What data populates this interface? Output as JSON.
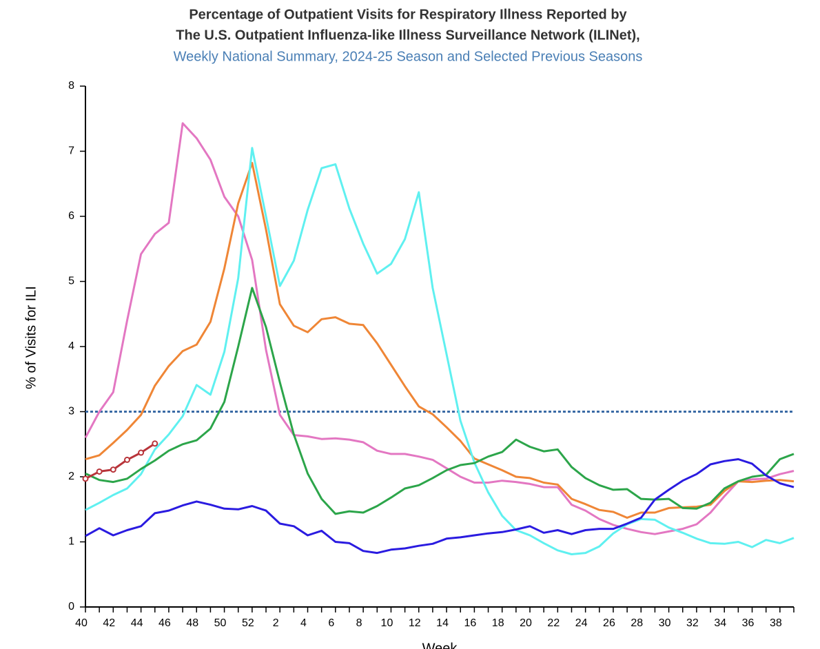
{
  "chart_data": {
    "type": "line",
    "title": "Percentage of Outpatient Visits for Respiratory Illness Reported by",
    "title_line2": "The U.S. Outpatient Influenza-like Illness Surveillance Network (ILINet),",
    "subtitle": "Weekly National Summary, 2024-25 Season and Selected Previous Seasons",
    "xlabel": "Week",
    "ylabel": "% of Visits for ILI",
    "categories": [
      "40",
      null,
      "42",
      null,
      "44",
      null,
      "46",
      null,
      "48",
      null,
      "50",
      null,
      "52",
      null,
      "2",
      null,
      "4",
      null,
      "6",
      null,
      "8",
      null,
      "10",
      null,
      "12",
      null,
      "14",
      null,
      "16",
      null,
      "18",
      null,
      "20",
      null,
      "22",
      null,
      "24",
      null,
      "26",
      null,
      "28",
      null,
      "30",
      null,
      "32",
      null,
      "34",
      null,
      "36",
      null,
      "38",
      null
    ],
    "ylim": [
      0,
      8
    ],
    "yticks": [
      0,
      1,
      2,
      3,
      4,
      5,
      6,
      7,
      8
    ],
    "baseline": 3,
    "baseline_color": "#3a6aa5",
    "series": [
      {
        "color": "#e377c2",
        "values": [
          2.6,
          3.0,
          3.3,
          4.4,
          5.42,
          5.73,
          5.9,
          7.43,
          7.2,
          6.87,
          6.3,
          6.0,
          5.33,
          3.95,
          2.95,
          2.64,
          2.62,
          2.58,
          2.59,
          2.57,
          2.53,
          2.4,
          2.35,
          2.35,
          2.31,
          2.26,
          2.13,
          2.0,
          1.91,
          1.91,
          1.94,
          1.92,
          1.89,
          1.84,
          1.84,
          1.57,
          1.48,
          1.35,
          1.26,
          1.2,
          1.15,
          1.12,
          1.16,
          1.2,
          1.27,
          1.45,
          1.7,
          1.93,
          1.96,
          1.97,
          2.04,
          2.09
        ]
      },
      {
        "color": "#ef8636",
        "values": [
          2.27,
          2.33,
          2.52,
          2.72,
          2.95,
          3.4,
          3.7,
          3.93,
          4.03,
          4.38,
          5.2,
          6.2,
          6.82,
          5.8,
          4.65,
          4.32,
          4.22,
          4.42,
          4.45,
          4.35,
          4.33,
          4.05,
          3.72,
          3.39,
          3.08,
          2.96,
          2.76,
          2.55,
          2.28,
          2.19,
          2.1,
          2.0,
          1.98,
          1.91,
          1.88,
          1.66,
          1.58,
          1.49,
          1.46,
          1.37,
          1.45,
          1.45,
          1.52,
          1.53,
          1.54,
          1.57,
          1.78,
          1.93,
          1.92,
          1.94,
          1.95,
          1.93
        ]
      },
      {
        "color": "#5ff0f0",
        "values": [
          1.49,
          1.6,
          1.72,
          1.82,
          2.04,
          2.42,
          2.65,
          2.93,
          3.41,
          3.26,
          3.92,
          5.05,
          7.05,
          6.0,
          4.93,
          5.32,
          6.1,
          6.74,
          6.8,
          6.12,
          5.58,
          5.12,
          5.27,
          5.65,
          6.37,
          4.9,
          3.88,
          2.86,
          2.22,
          1.76,
          1.4,
          1.18,
          1.1,
          0.98,
          0.87,
          0.81,
          0.83,
          0.93,
          1.13,
          1.27,
          1.35,
          1.34,
          1.22,
          1.14,
          1.05,
          0.98,
          0.97,
          1.0,
          0.92,
          1.03,
          0.98,
          1.06
        ]
      },
      {
        "color": "#2ca54a",
        "values": [
          2.05,
          1.95,
          1.92,
          1.97,
          2.12,
          2.25,
          2.4,
          2.5,
          2.56,
          2.74,
          3.15,
          4.0,
          4.9,
          4.3,
          3.45,
          2.65,
          2.05,
          1.66,
          1.43,
          1.47,
          1.45,
          1.55,
          1.68,
          1.82,
          1.87,
          1.98,
          2.1,
          2.18,
          2.21,
          2.31,
          2.38,
          2.57,
          2.46,
          2.39,
          2.42,
          2.15,
          1.98,
          1.87,
          1.8,
          1.81,
          1.66,
          1.65,
          1.66,
          1.52,
          1.51,
          1.6,
          1.82,
          1.93,
          2.0,
          2.03,
          2.27,
          2.35
        ]
      },
      {
        "color": "#2a1be0",
        "values": [
          1.09,
          1.21,
          1.1,
          1.18,
          1.24,
          1.44,
          1.48,
          1.56,
          1.62,
          1.57,
          1.51,
          1.5,
          1.55,
          1.48,
          1.28,
          1.24,
          1.1,
          1.17,
          1.0,
          0.98,
          0.86,
          0.83,
          0.88,
          0.9,
          0.94,
          0.97,
          1.05,
          1.07,
          1.1,
          1.13,
          1.15,
          1.19,
          1.24,
          1.14,
          1.18,
          1.12,
          1.18,
          1.2,
          1.2,
          1.28,
          1.37,
          1.65,
          1.8,
          1.94,
          2.04,
          2.19,
          2.24,
          2.27,
          2.2,
          2.02,
          1.9,
          1.84
        ]
      },
      {
        "color": "#b8343a",
        "marker": "circle",
        "values": [
          1.97,
          2.08,
          2.11,
          2.26,
          2.37,
          2.51,
          null,
          null,
          null,
          null,
          null,
          null,
          null,
          null,
          null,
          null,
          null,
          null,
          null,
          null,
          null,
          null,
          null,
          null,
          null,
          null,
          null,
          null,
          null,
          null,
          null,
          null,
          null,
          null,
          null,
          null,
          null,
          null,
          null,
          null,
          null,
          null,
          null,
          null,
          null,
          null,
          null,
          null,
          null,
          null,
          null,
          null
        ]
      }
    ]
  }
}
